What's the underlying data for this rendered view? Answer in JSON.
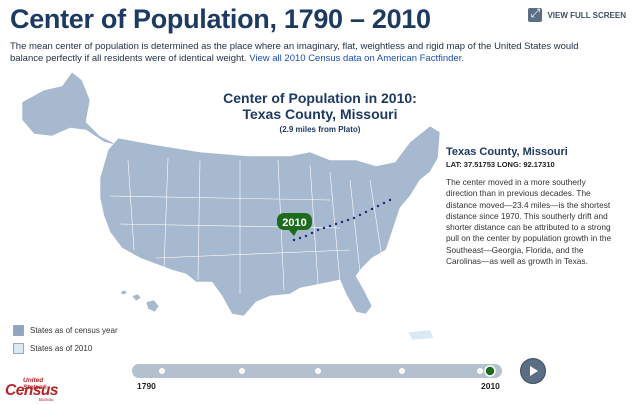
{
  "header": {
    "title": "Center of Population, 1790 – 2010",
    "view_full_label": "VIEW FULL SCREEN"
  },
  "intro": {
    "text": "The mean center of population is determined as the place where an imaginary, flat, weightless and rigid map of the United States would balance perfectly if all residents were of identical weight.",
    "link_text": "View all 2010 Census data on American Factfinder."
  },
  "map": {
    "heading_line1": "Center of Population in 2010:",
    "heading_line2": "Texas County, Missouri",
    "subheading": "(2.9 miles from Plato)",
    "marker_label": "2010"
  },
  "info": {
    "place": "Texas County, Missouri",
    "coords": "LAT: 37.51753 LONG: 92.17310",
    "description": "The center moved in a more southerly direction than in previous decades. The distance moved—23.4 miles—is the shortest distance since 1970. This southerly drift and shorter distance can be attributed to a strong pull on the center by population growth in the Southeast—Georgia, Florida, and the Carolinas—as well as growth in Texas."
  },
  "legend": [
    {
      "label": "States as of census year",
      "color": "#8fa6c0"
    },
    {
      "label": "States as of 2010",
      "color": "#d9e9f3"
    }
  ],
  "timeline": {
    "start_label": "1790",
    "end_label": "2010",
    "selected": "2010"
  },
  "logo": {
    "line1": "United States®",
    "line2": "Census",
    "line3": "Bureau"
  },
  "colors": {
    "title": "#1d3a63",
    "map_fill": "#a7b9cf",
    "marker": "#1d6b1d",
    "path": "#1a237e",
    "link": "#1a4fb5"
  }
}
